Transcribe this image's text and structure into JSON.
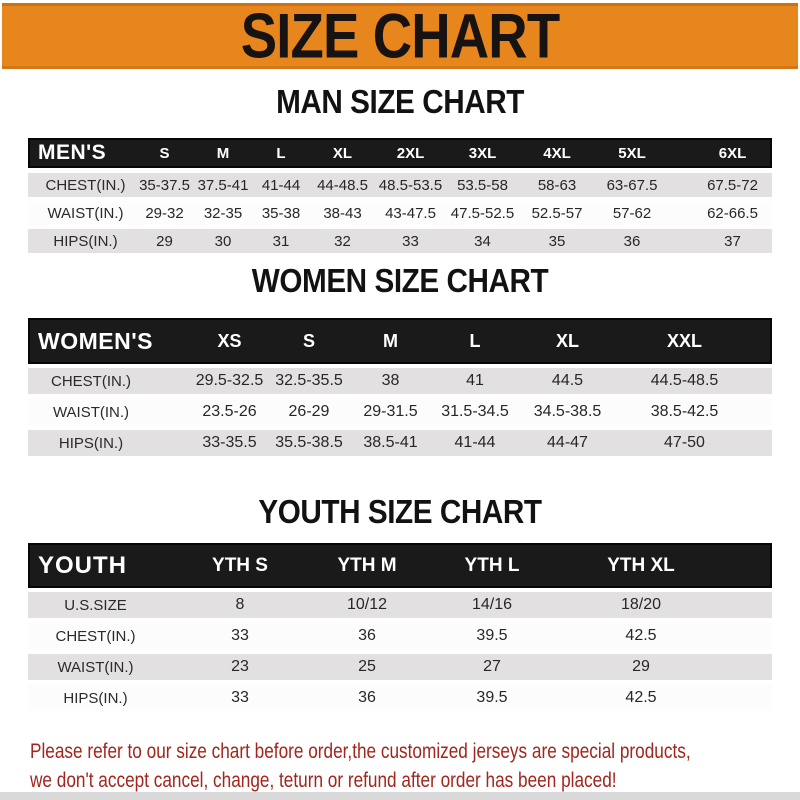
{
  "banner": {
    "title": "SIZE CHART"
  },
  "chart_data": [
    {
      "type": "table",
      "title": "MAN SIZE CHART",
      "header_label": "MEN'S",
      "columns": [
        "S",
        "M",
        "L",
        "XL",
        "2XL",
        "3XL",
        "4XL",
        "5XL",
        "6XL"
      ],
      "rows": [
        {
          "label": "CHEST(IN.)",
          "values": [
            "35-37.5",
            "37.5-41",
            "41-44",
            "44-48.5",
            "48.5-53.5",
            "53.5-58",
            "58-63",
            "63-67.5",
            "67.5-72"
          ]
        },
        {
          "label": "WAIST(IN.)",
          "values": [
            "29-32",
            "32-35",
            "35-38",
            "38-43",
            "43-47.5",
            "47.5-52.5",
            "52.5-57",
            "57-62",
            "62-66.5"
          ]
        },
        {
          "label": "HIPS(IN.)",
          "values": [
            "29",
            "30",
            "31",
            "32",
            "33",
            "34",
            "35",
            "36",
            "37"
          ]
        }
      ]
    },
    {
      "type": "table",
      "title": "WOMEN SIZE CHART",
      "header_label": "WOMEN'S",
      "columns": [
        "XS",
        "S",
        "M",
        "L",
        "XL",
        "XXL"
      ],
      "rows": [
        {
          "label": "CHEST(IN.)",
          "values": [
            "29.5-32.5",
            "32.5-35.5",
            "38",
            "41",
            "44.5",
            "44.5-48.5"
          ]
        },
        {
          "label": "WAIST(IN.)",
          "values": [
            "23.5-26",
            "26-29",
            "29-31.5",
            "31.5-34.5",
            "34.5-38.5",
            "38.5-42.5"
          ]
        },
        {
          "label": "HIPS(IN.)",
          "values": [
            "33-35.5",
            "35.5-38.5",
            "38.5-41",
            "41-44",
            "44-47",
            "47-50"
          ]
        }
      ]
    },
    {
      "type": "table",
      "title": "YOUTH SIZE CHART",
      "header_label": "YOUTH",
      "columns": [
        "YTH S",
        "YTH M",
        "YTH L",
        "YTH XL"
      ],
      "rows": [
        {
          "label": "U.S.SIZE",
          "values": [
            "8",
            "10/12",
            "14/16",
            "18/20"
          ]
        },
        {
          "label": "CHEST(IN.)",
          "values": [
            "33",
            "36",
            "39.5",
            "42.5"
          ]
        },
        {
          "label": "WAIST(IN.)",
          "values": [
            "23",
            "25",
            "27",
            "29"
          ]
        },
        {
          "label": "HIPS(IN.)",
          "values": [
            "33",
            "36",
            "39.5",
            "42.5"
          ]
        }
      ]
    }
  ],
  "footer": {
    "lines": [
      "Please refer to our size chart before order,the customized jerseys are special products,",
      "we don't accept cancel, change, teturn or refund after order has been placed!"
    ]
  },
  "colors": {
    "banner_bg": "#E8861E",
    "bar_bg": "#1A1A1A",
    "row_gray": "#E2E0E1",
    "note_red": "#A3251D"
  }
}
